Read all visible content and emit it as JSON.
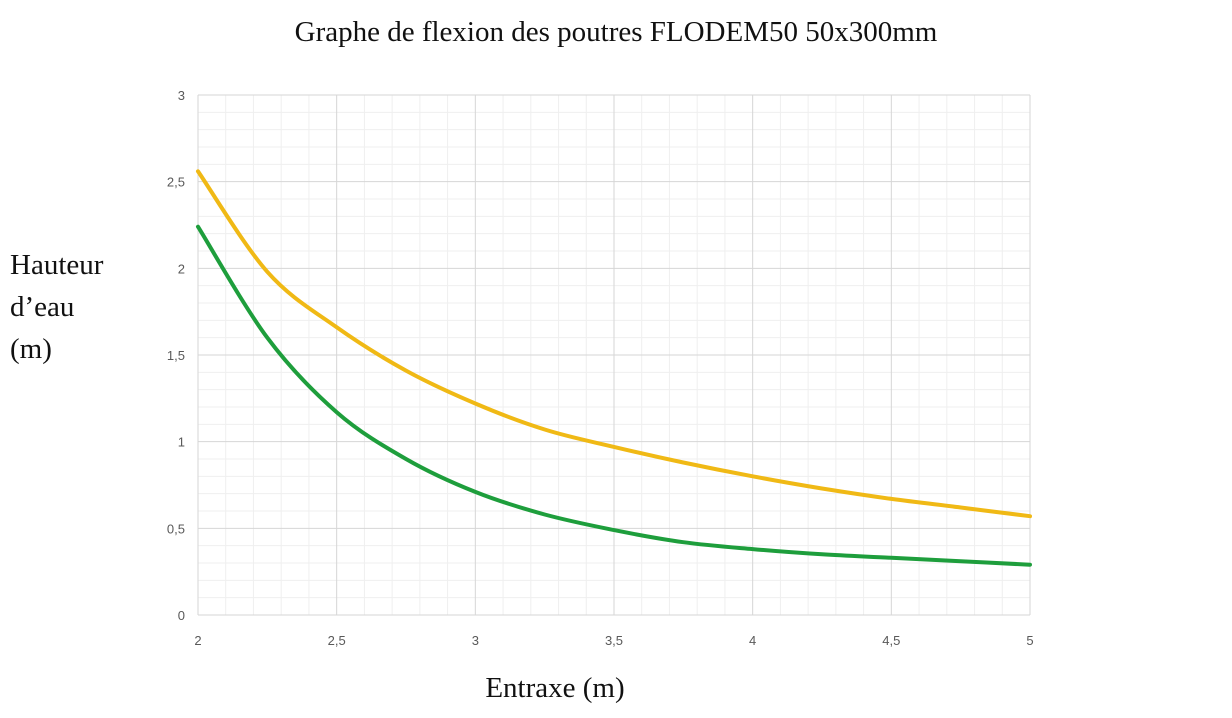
{
  "chart_data": {
    "type": "line",
    "title": "Graphe de flexion des poutres FLODEM50 50x300mm",
    "xlabel": "Entraxe (m)",
    "ylabel_lines": [
      "Hauteur",
      "d’eau",
      "(m)"
    ],
    "xlim": [
      2,
      5
    ],
    "ylim": [
      0,
      3
    ],
    "x_ticks": [
      "2",
      "2,5",
      "3",
      "3,5",
      "4",
      "4,5",
      "5"
    ],
    "y_ticks": [
      "0",
      "0,5",
      "1",
      "1,5",
      "2",
      "2,5",
      "3"
    ],
    "grid": true,
    "legend": "none",
    "series": [
      {
        "color": "#f0b915",
        "x": [
          2.0,
          2.25,
          2.5,
          2.75,
          3.0,
          3.25,
          3.5,
          3.75,
          4.0,
          4.25,
          4.5,
          4.75,
          5.0
        ],
        "y": [
          2.56,
          1.98,
          1.66,
          1.41,
          1.22,
          1.07,
          0.97,
          0.88,
          0.8,
          0.73,
          0.67,
          0.62,
          0.57
        ]
      },
      {
        "color": "#1e9e3c",
        "x": [
          2.0,
          2.25,
          2.5,
          2.75,
          3.0,
          3.25,
          3.5,
          3.75,
          4.0,
          4.25,
          4.5,
          4.75,
          5.0
        ],
        "y": [
          2.24,
          1.6,
          1.17,
          0.9,
          0.71,
          0.58,
          0.49,
          0.42,
          0.38,
          0.35,
          0.33,
          0.31,
          0.29
        ]
      }
    ]
  }
}
